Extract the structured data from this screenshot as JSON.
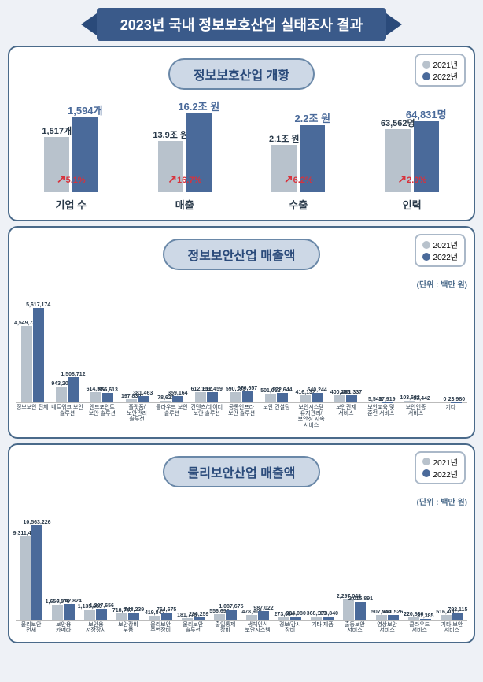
{
  "colors": {
    "y2021": "#b8c2cc",
    "y2022": "#4a6a9a",
    "accent": "#3a5a8a"
  },
  "main_title": "2023년 국내 정보보호산업 실태조사 결과",
  "legend_2021": "2021년",
  "legend_2022": "2022년",
  "overview": {
    "title": "정보보호산업 개황",
    "items": [
      {
        "name": "기업 수",
        "v2021": "1,517개",
        "v2022": "1,594개",
        "growth": "5.1%",
        "h1": 70,
        "h2": 95
      },
      {
        "name": "매출",
        "v2021": "13.9조 원",
        "v2022": "16.2조 원",
        "growth": "16.7%",
        "h1": 65,
        "h2": 100
      },
      {
        "name": "수출",
        "v2021": "2.1조 원",
        "v2022": "2.2조 원",
        "growth": "6.2%",
        "h1": 60,
        "h2": 85
      },
      {
        "name": "인력",
        "v2021": "63,562명",
        "v2022": "64,831명",
        "growth": "2.0%",
        "h1": 80,
        "h2": 90
      }
    ]
  },
  "info_security": {
    "title": "정보보안산업 매출액",
    "unit": "(단위 : 백만 원)",
    "max": 5617174,
    "series": [
      {
        "label": "정보보안 전체",
        "v2021": 4549734,
        "v2022": 5617174
      },
      {
        "label": "네트워크 보안 솔루션",
        "v2021": 943201,
        "v2022": 1508712
      },
      {
        "label": "엔드포인트 보안 솔루션",
        "v2021": 614592,
        "v2022": 555613
      },
      {
        "label": "플랫폼/보안관리 솔루션",
        "v2021": 197830,
        "v2022": 381463
      },
      {
        "label": "클라우드 보안 솔루션",
        "v2021": 78623,
        "v2022": 359164
      },
      {
        "label": "컨텐츠/데이터 보안 솔루션",
        "v2021": 612153,
        "v2022": 612459
      },
      {
        "label": "공통인프라 보안 솔루션",
        "v2021": 590198,
        "v2022": 676657
      },
      {
        "label": "보안 컨설팅",
        "v2021": 501012,
        "v2022": 572644
      },
      {
        "label": "보안시스템 유지관리/보안성 지속 서비스",
        "v2021": 416132,
        "v2022": 540244
      },
      {
        "label": "보안관제 서비스",
        "v2021": 400205,
        "v2022": 401337
      },
      {
        "label": "보안교육 및 훈련 서비스",
        "v2021": 5545,
        "v2022": 17919
      },
      {
        "label": "보안인증 서비스",
        "v2021": 103682,
        "v2022": 53442
      },
      {
        "label": "기타",
        "v2021": 0,
        "v2022": 23980
      }
    ]
  },
  "physical_security": {
    "title": "물리보안산업 매출액",
    "unit": "(단위 : 백만 원)",
    "max": 10563226,
    "series": [
      {
        "label": "물리보안 전체",
        "v2021": 9311446,
        "v2022": 10563226
      },
      {
        "label": "보안용 카메라",
        "v2021": 1656579,
        "v2022": 1742824
      },
      {
        "label": "보안용 저장장치",
        "v2021": 1135883,
        "v2022": 1207656
      },
      {
        "label": "보안장비 부품",
        "v2021": 718747,
        "v2022": 748239
      },
      {
        "label": "물리보안 주변장비",
        "v2021": 419842,
        "v2022": 764675
      },
      {
        "label": "물리보안 솔루션",
        "v2021": 181775,
        "v2022": 286259
      },
      {
        "label": "출입통제 장비",
        "v2021": 556695,
        "v2022": 1087675
      },
      {
        "label": "생체인식 보안시스템",
        "v2021": 478910,
        "v2022": 987022
      },
      {
        "label": "경보/감시 장비",
        "v2021": 273084,
        "v2022": 334080
      },
      {
        "label": "기타 제품",
        "v2021": 368103,
        "v2022": 373840
      },
      {
        "label": "출동보안 서비스",
        "v2021": 2297048,
        "v2022": 2015891
      },
      {
        "label": "영상보안 서비스",
        "v2021": 507544,
        "v2022": 491526
      },
      {
        "label": "클라우드 서비스",
        "v2021": 220836,
        "v2022": 31385
      },
      {
        "label": "기타 보안 서비스",
        "v2021": 516400,
        "v2022": 792115
      }
    ]
  }
}
